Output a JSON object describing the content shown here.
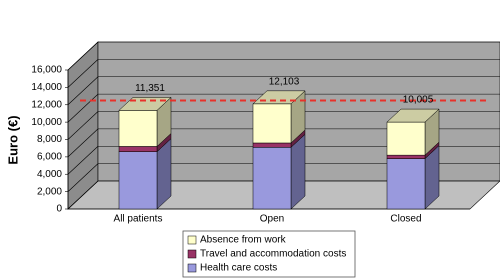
{
  "chart_data": {
    "type": "bar3d_stacked",
    "y_label": "Euro (€)",
    "categories": [
      "All patients",
      "Open",
      "Closed"
    ],
    "series": [
      {
        "name": "Health care costs",
        "color": "#9999dd",
        "values": [
          6600,
          7100,
          5800
        ]
      },
      {
        "name": "Travel and accommodation costs",
        "color": "#993366",
        "values": [
          600,
          500,
          400
        ]
      },
      {
        "name": "Absence from work",
        "color": "#ffffcc",
        "values": [
          4151,
          4503,
          3805
        ]
      }
    ],
    "totals": {
      "values": [
        11351,
        12103,
        10005
      ],
      "value_labels": [
        "11,351",
        "12,103",
        "10,005"
      ]
    },
    "reference_line": {
      "value": 11800,
      "color": "#e8312a"
    },
    "ylim": [
      0,
      16000
    ],
    "yticks": [
      0,
      {
        "value": 2000,
        "label": "2,000"
      },
      {
        "value": 4000,
        "label": "4,000"
      },
      {
        "value": 6000,
        "label": "6,000"
      },
      {
        "value": 8000,
        "label": "8,000"
      },
      {
        "value": 10000,
        "label": "10,000"
      },
      {
        "value": 12000,
        "label": "12,000"
      },
      {
        "value": 14000,
        "label": "14,000"
      },
      {
        "value": 16000,
        "label": "16,000"
      }
    ],
    "grid": true
  }
}
